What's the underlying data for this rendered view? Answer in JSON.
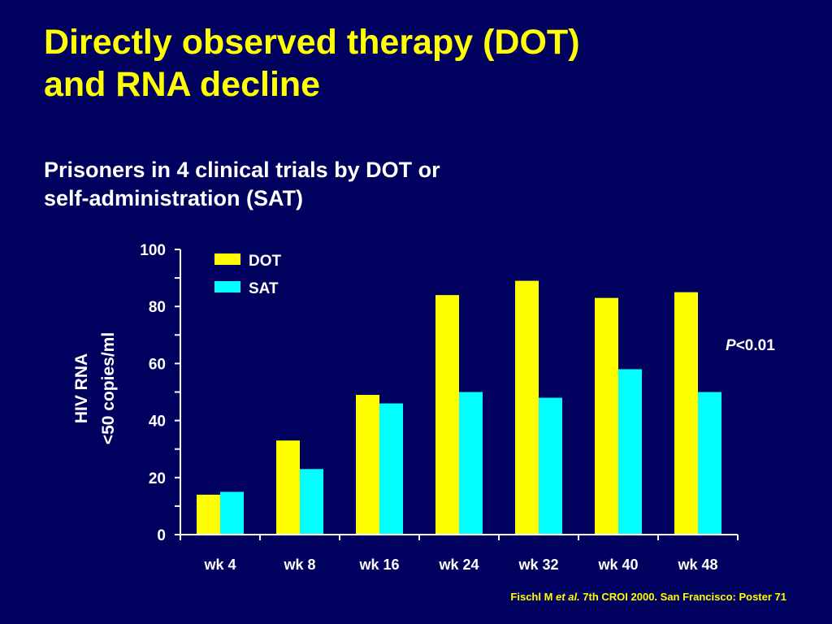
{
  "slide": {
    "title_line1": "Directly observed therapy (DOT)",
    "title_line2": "and RNA decline",
    "subtitle_line1": "Prisoners in 4 clinical trials by DOT or",
    "subtitle_line2": "self-administration (SAT)",
    "citation_prefix": "Fischl M ",
    "citation_italic": "et al.",
    "citation_suffix": " 7th CROI  2000. San Francisco: Poster 71",
    "pvalue_italic": "P",
    "pvalue_rest": "<0.01"
  },
  "colors": {
    "background": "#00005f",
    "title": "#ffff00",
    "text": "#ffffff",
    "dot": "#ffff00",
    "sat": "#00ffff"
  },
  "chart_data": {
    "type": "bar",
    "categories": [
      "wk 4",
      "wk 8",
      "wk 16",
      "wk 24",
      "wk 32",
      "wk 40",
      "wk 48"
    ],
    "series": [
      {
        "name": "DOT",
        "color": "#ffff00",
        "values": [
          14,
          33,
          49,
          84,
          89,
          83,
          85
        ]
      },
      {
        "name": "SAT",
        "color": "#00ffff",
        "values": [
          15,
          23,
          46,
          50,
          48,
          58,
          50
        ]
      }
    ],
    "ylabel_line1": "HIV RNA",
    "ylabel_line2": "<50 copies/ml",
    "xlabel": "",
    "ylim": [
      0,
      100
    ],
    "yticks": [
      0,
      20,
      40,
      60,
      80,
      100
    ],
    "grid": false,
    "legend_position": "top-left"
  }
}
